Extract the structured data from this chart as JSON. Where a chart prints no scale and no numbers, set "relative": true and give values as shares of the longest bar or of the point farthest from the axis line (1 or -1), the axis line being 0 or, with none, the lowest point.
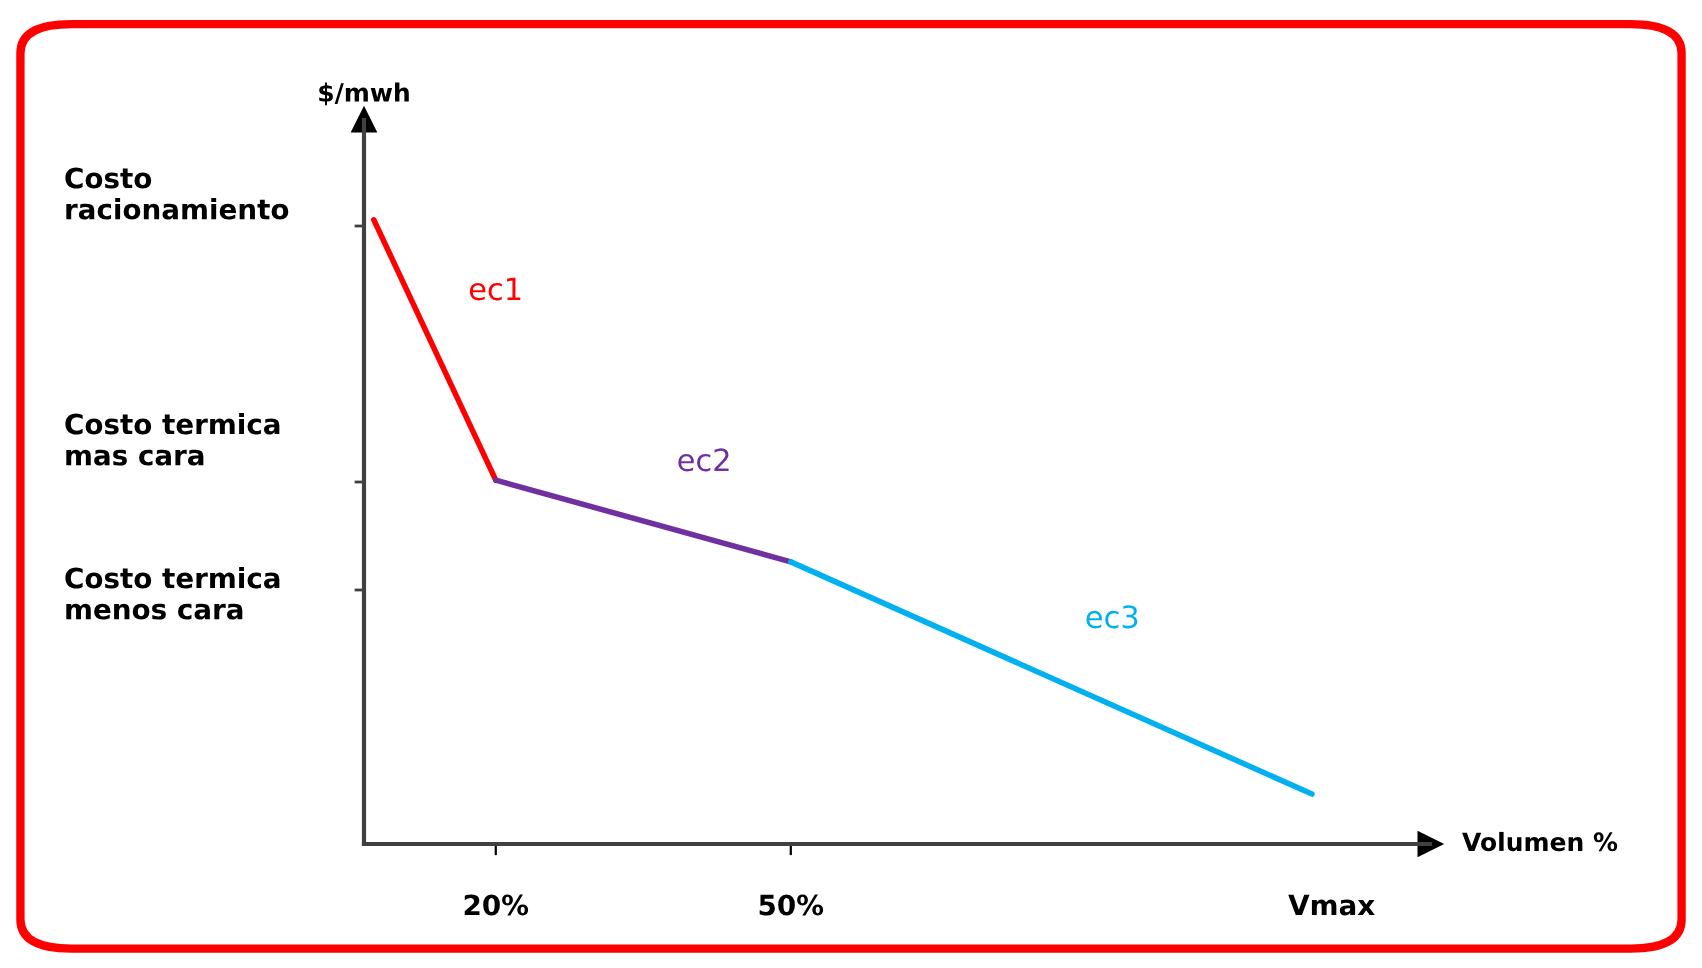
{
  "chart_data": {
    "type": "line",
    "relative": true,
    "xlabel": "Volumen %",
    "ylabel": "$/mwh",
    "series": [
      {
        "name": "ec1",
        "color": "#ff0000",
        "x": [
          7.6,
          20
        ],
        "values": [
          1,
          0.583
        ]
      },
      {
        "name": "ec2",
        "color": "#7030a0",
        "x": [
          20,
          50
        ],
        "values": [
          0.583,
          0.452
        ]
      },
      {
        "name": "ec3",
        "color": "#00b0f0",
        "x": [
          50,
          103
        ],
        "values": [
          0.452,
          0.08
        ]
      }
    ],
    "xlim": [
      6.6,
      115
    ],
    "xticks": [
      {
        "value": 20,
        "label": "20%"
      },
      {
        "value": 50,
        "label": "50%"
      },
      {
        "value": 105,
        "label": "Vmax"
      }
    ],
    "annotations": [
      "Costo\nracionamiento",
      "Costo termica\nmas cara",
      "Costo termica\nmenos cara"
    ],
    "grid": false,
    "legend": false,
    "marker": "none",
    "line_style": "solid"
  }
}
